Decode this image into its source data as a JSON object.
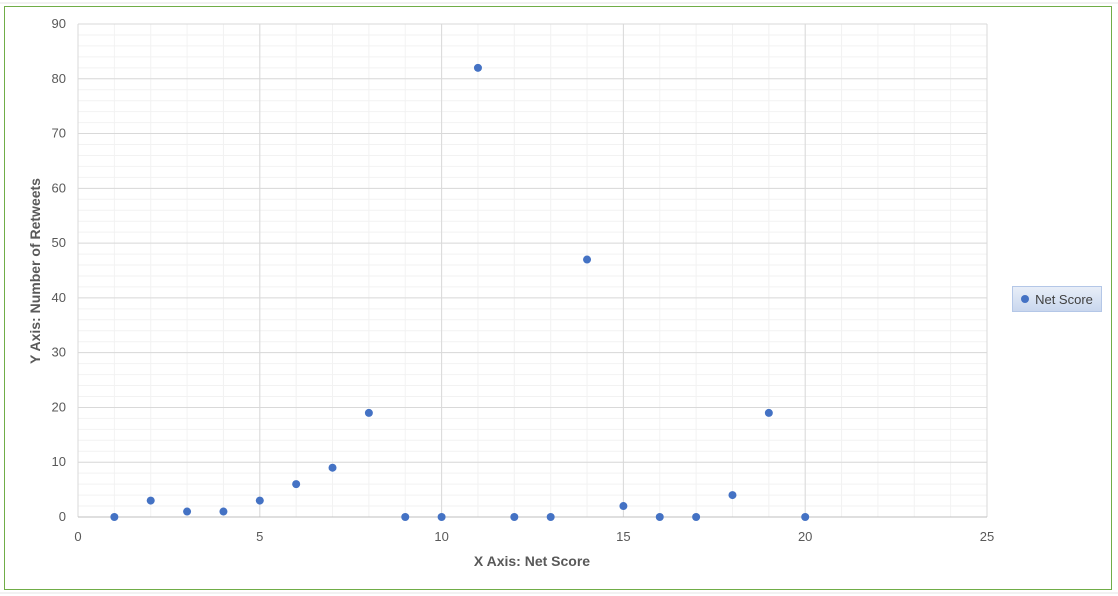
{
  "colors": {
    "series": "#4472c4",
    "grid_major": "#d9d9d9",
    "grid_minor": "#f2f2f2",
    "frame": "#70ad47"
  },
  "chart_data": {
    "type": "scatter",
    "title": "",
    "xlabel": "X Axis: Net Score",
    "ylabel": "Y Axis: Number of Retweets",
    "xlim": [
      0,
      25
    ],
    "ylim": [
      0,
      90
    ],
    "x_ticks": [
      0,
      5,
      10,
      15,
      20,
      25
    ],
    "y_ticks": [
      0,
      10,
      20,
      30,
      40,
      50,
      60,
      70,
      80,
      90
    ],
    "grid": true,
    "legend_position": "right",
    "series": [
      {
        "name": "Net Score",
        "color": "#4472c4",
        "points": [
          [
            1,
            0
          ],
          [
            2,
            3
          ],
          [
            3,
            1
          ],
          [
            4,
            1
          ],
          [
            5,
            3
          ],
          [
            6,
            6
          ],
          [
            7,
            9
          ],
          [
            8,
            19
          ],
          [
            9,
            0
          ],
          [
            10,
            0
          ],
          [
            11,
            82
          ],
          [
            12,
            0
          ],
          [
            13,
            0
          ],
          [
            14,
            47
          ],
          [
            15,
            2
          ],
          [
            16,
            0
          ],
          [
            17,
            0
          ],
          [
            18,
            4
          ],
          [
            19,
            19
          ],
          [
            20,
            0
          ]
        ]
      }
    ]
  }
}
